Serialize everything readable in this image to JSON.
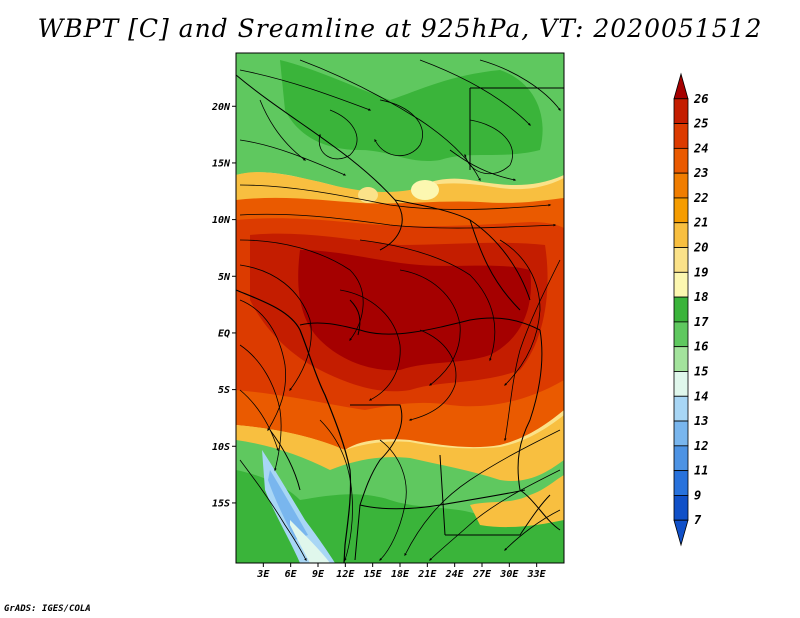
{
  "title": "WBPT [C] and Sreamline at 925hPa, VT: 2020051512",
  "credit": "GrADS: IGES/COLA",
  "map": {
    "variable": "Wet-bulb potential temperature",
    "units": "C",
    "level": "925hPa",
    "valid_time": "2020051512",
    "lat_labels": [
      {
        "text": "20N",
        "lat": 20
      },
      {
        "text": "15N",
        "lat": 15
      },
      {
        "text": "10N",
        "lat": 10
      },
      {
        "text": "5N",
        "lat": 5
      },
      {
        "text": "EQ",
        "lat": 0
      },
      {
        "text": "5S",
        "lat": -5
      },
      {
        "text": "10S",
        "lat": -10
      },
      {
        "text": "15S",
        "lat": -15
      }
    ],
    "lon_labels": [
      {
        "text": "3E",
        "lon": 3
      },
      {
        "text": "6E",
        "lon": 6
      },
      {
        "text": "9E",
        "lon": 9
      },
      {
        "text": "12E",
        "lon": 12
      },
      {
        "text": "15E",
        "lon": 15
      },
      {
        "text": "18E",
        "lon": 18
      },
      {
        "text": "21E",
        "lon": 21
      },
      {
        "text": "24E",
        "lon": 24
      },
      {
        "text": "27E",
        "lon": 27
      },
      {
        "text": "30E",
        "lon": 30
      },
      {
        "text": "33E",
        "lon": 33
      }
    ]
  },
  "colorbar": {
    "labels": [
      "26",
      "25",
      "24",
      "23",
      "22",
      "21",
      "20",
      "19",
      "18",
      "17",
      "16",
      "15",
      "14",
      "13",
      "12",
      "11",
      "9",
      "7"
    ],
    "colors": [
      "#a50000",
      "#c41d00",
      "#dc3b00",
      "#ea5a00",
      "#f07d00",
      "#f59c00",
      "#f8bf40",
      "#fbe289",
      "#fcf7b0",
      "#3ab43a",
      "#5fc85f",
      "#a3e39c",
      "#e0f7ec",
      "#a8d6f5",
      "#79b6ee",
      "#4d93e4",
      "#2872dc",
      "#1050c8"
    ]
  }
}
